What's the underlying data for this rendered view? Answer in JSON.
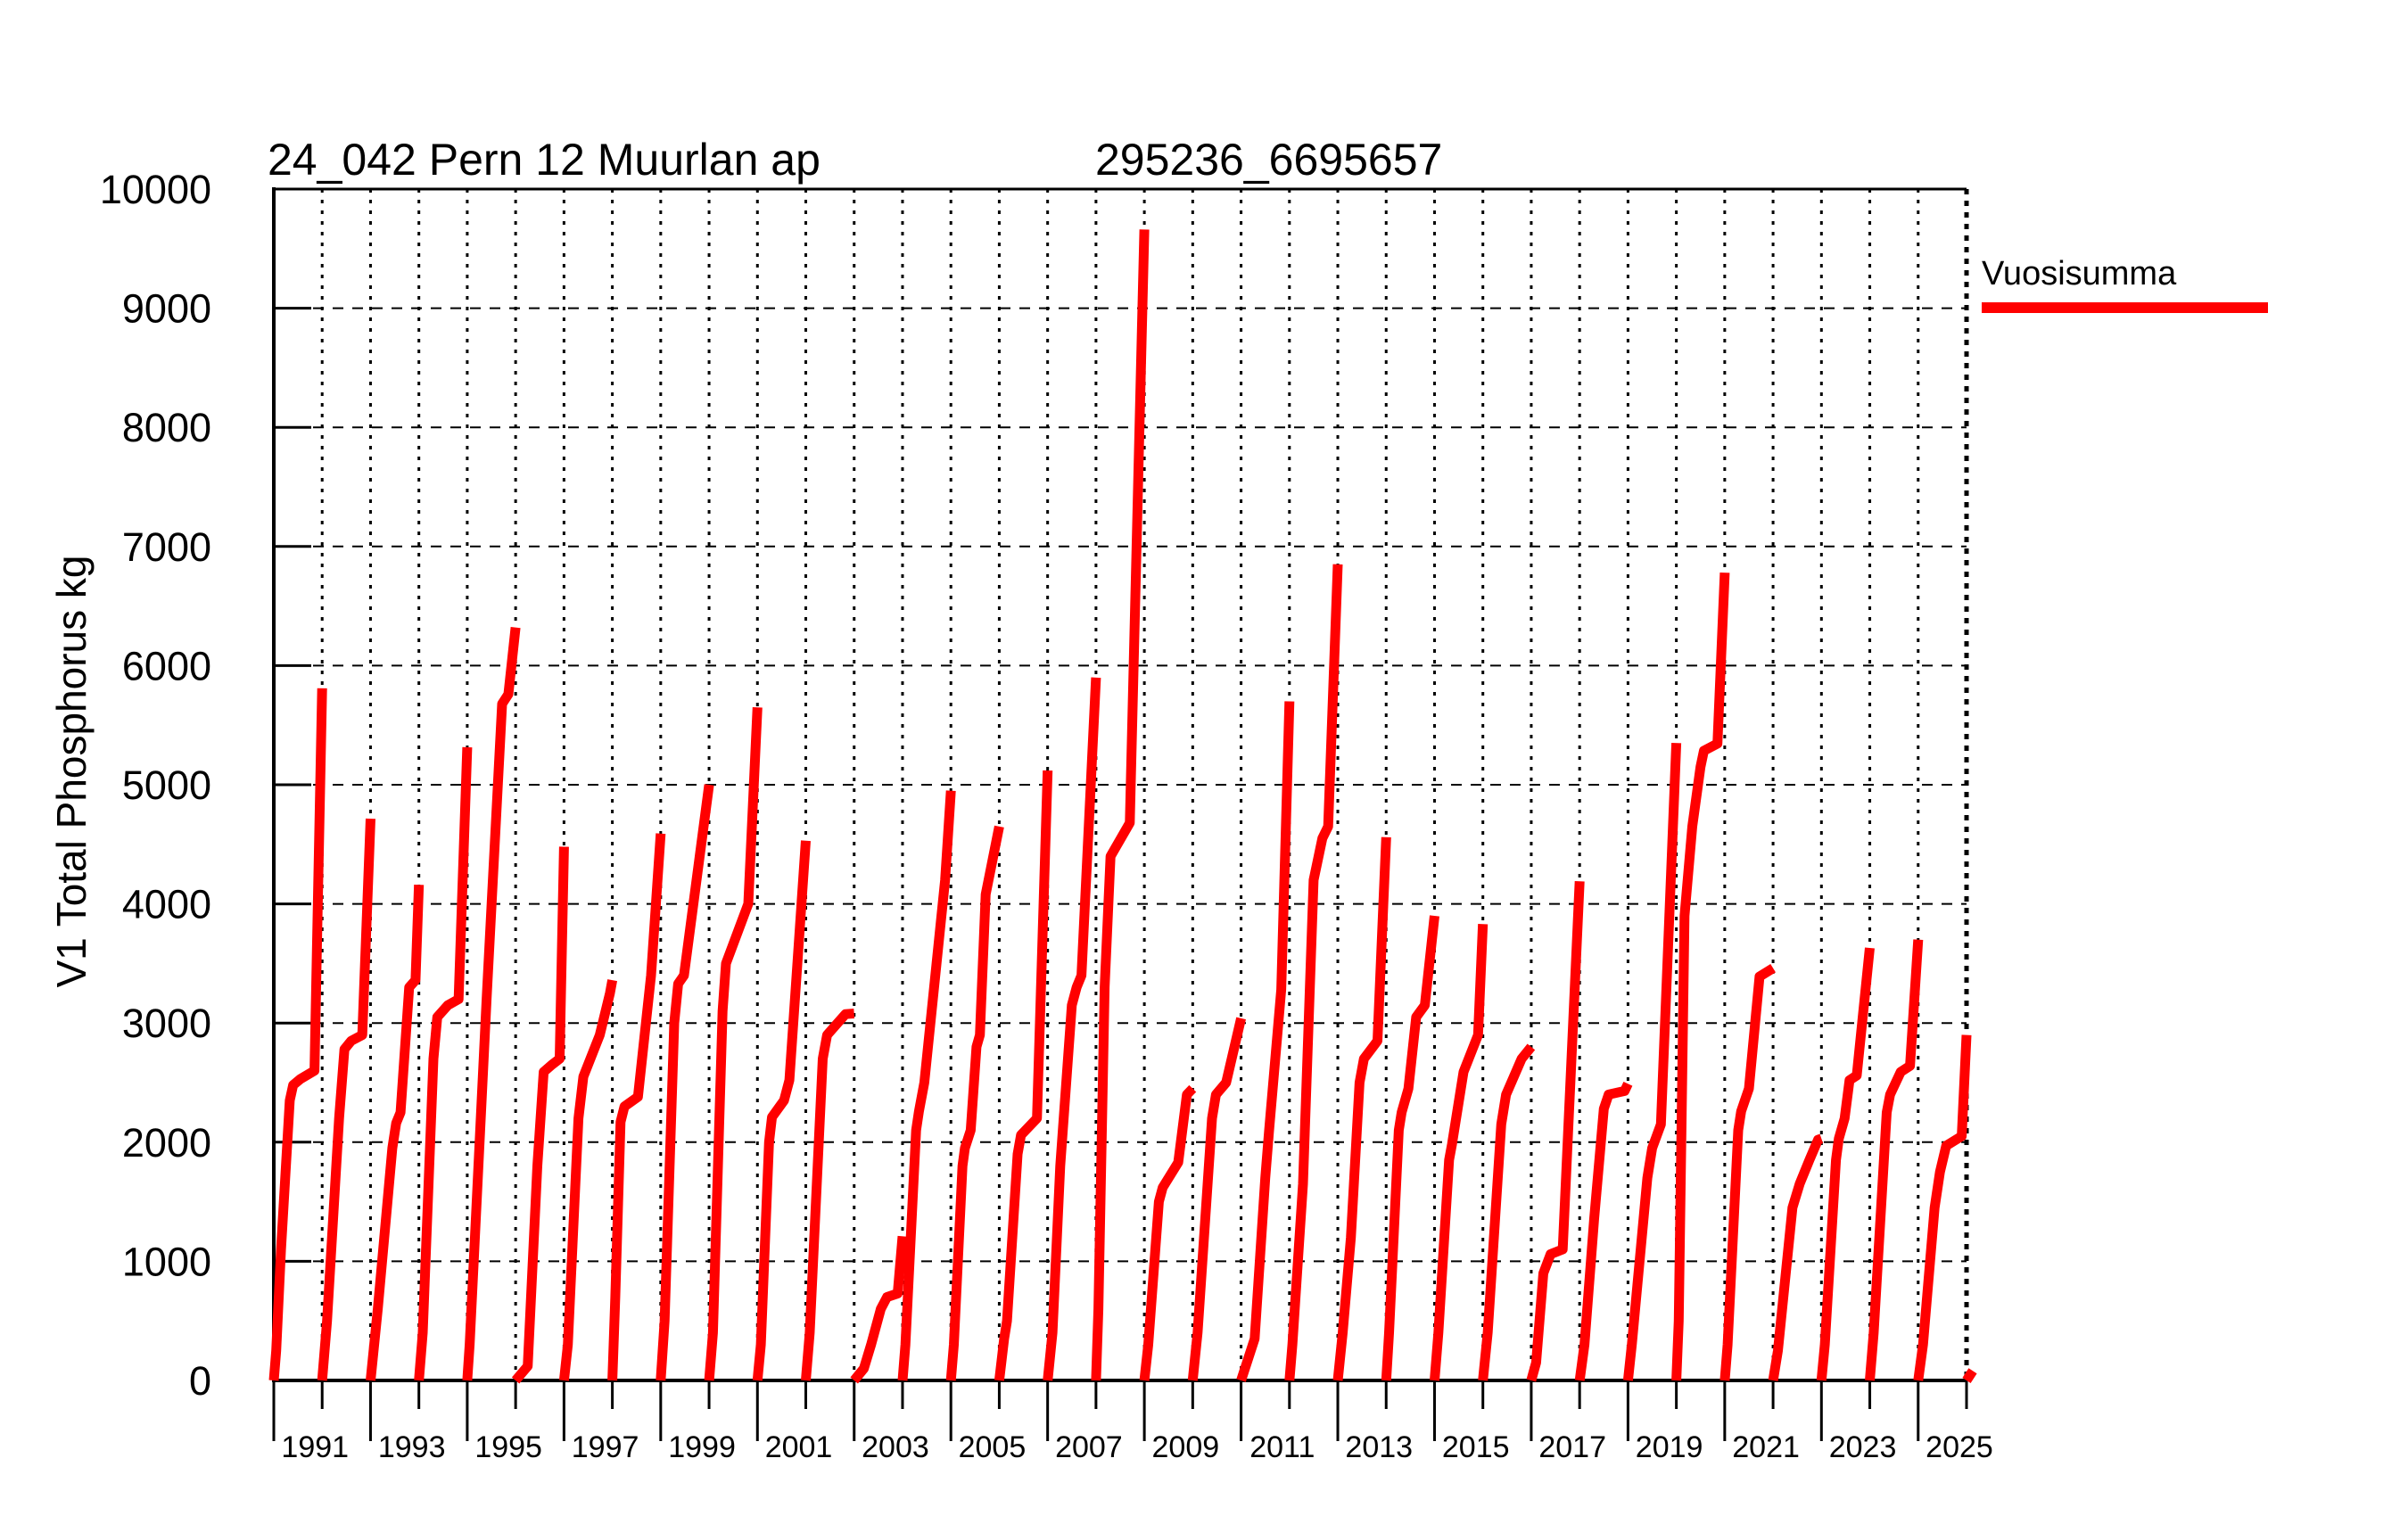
{
  "title": {
    "station": "24_042 Pern 12 Muurlan ap",
    "coordinates": "295236_6695657"
  },
  "y_axis": {
    "label": "V1 Total Phosphorus kg",
    "min": 0,
    "max": 10000,
    "tick_step": 1000,
    "tick_values": [
      0,
      1000,
      2000,
      3000,
      4000,
      5000,
      6000,
      7000,
      8000,
      9000,
      10000
    ]
  },
  "x_axis": {
    "start_year": 1990,
    "end_year": 2025,
    "labeled_years": [
      1991,
      1993,
      1995,
      1997,
      1999,
      2001,
      2003,
      2005,
      2007,
      2009,
      2011,
      2013,
      2015,
      2017,
      2019,
      2021,
      2023,
      2025
    ]
  },
  "legend": {
    "label": "Vuosisumma",
    "color": "#ff0000"
  },
  "colors": {
    "series": "#ff0000",
    "axis": "#000000",
    "background": "#ffffff"
  },
  "chart_data": {
    "type": "line",
    "title": "24_042 Pern 12 Muurlan ap 295236_6695657",
    "xlabel": "",
    "ylabel": "V1 Total Phosphorus kg",
    "ylim": [
      0,
      10000
    ],
    "xlim": [
      1990,
      2025
    ],
    "grid": true,
    "legend_position": "outside-top-right",
    "series_name": "Vuosisumma",
    "unit": "kg",
    "description": "Cumulative annual total phosphorus load; each year's curve rises from 0 on Jan 1 to the annual total on Dec 31. profile points are [fraction_of_year, cumulative_kg].",
    "years": [
      {
        "year": 1990,
        "total": 5810,
        "profile": [
          [
            0,
            0
          ],
          [
            0.05,
            250
          ],
          [
            0.15,
            1100
          ],
          [
            0.33,
            2350
          ],
          [
            0.4,
            2480
          ],
          [
            0.55,
            2530
          ],
          [
            0.84,
            2600
          ],
          [
            1,
            5810
          ]
        ]
      },
      {
        "year": 1991,
        "total": 4715,
        "profile": [
          [
            0,
            0
          ],
          [
            0.1,
            500
          ],
          [
            0.35,
            2200
          ],
          [
            0.46,
            2780
          ],
          [
            0.6,
            2850
          ],
          [
            0.83,
            2900
          ],
          [
            1,
            4715
          ]
        ]
      },
      {
        "year": 1992,
        "total": 4160,
        "profile": [
          [
            0,
            0
          ],
          [
            0.15,
            600
          ],
          [
            0.45,
            1950
          ],
          [
            0.53,
            2160
          ],
          [
            0.62,
            2250
          ],
          [
            0.8,
            3300
          ],
          [
            0.93,
            3360
          ],
          [
            1,
            4160
          ]
        ]
      },
      {
        "year": 1993,
        "total": 5315,
        "profile": [
          [
            0,
            0
          ],
          [
            0.08,
            400
          ],
          [
            0.3,
            2700
          ],
          [
            0.38,
            3050
          ],
          [
            0.6,
            3150
          ],
          [
            0.82,
            3200
          ],
          [
            1,
            5315
          ]
        ]
      },
      {
        "year": 1994,
        "total": 6320,
        "profile": [
          [
            0,
            0
          ],
          [
            0.05,
            300
          ],
          [
            0.4,
            3200
          ],
          [
            0.72,
            5680
          ],
          [
            0.85,
            5760
          ],
          [
            1,
            6320
          ]
        ]
      },
      {
        "year": 1995,
        "total": 4480,
        "profile": [
          [
            0,
            0
          ],
          [
            0.25,
            120
          ],
          [
            0.45,
            1800
          ],
          [
            0.58,
            2590
          ],
          [
            0.75,
            2650
          ],
          [
            0.91,
            2700
          ],
          [
            1,
            4480
          ]
        ]
      },
      {
        "year": 1996,
        "total": 3360,
        "profile": [
          [
            0,
            0
          ],
          [
            0.08,
            300
          ],
          [
            0.3,
            2200
          ],
          [
            0.4,
            2550
          ],
          [
            0.74,
            2900
          ],
          [
            0.95,
            3250
          ],
          [
            1,
            3360
          ]
        ]
      },
      {
        "year": 1997,
        "total": 4590,
        "profile": [
          [
            0,
            0
          ],
          [
            0.06,
            700
          ],
          [
            0.17,
            2170
          ],
          [
            0.25,
            2300
          ],
          [
            0.53,
            2380
          ],
          [
            0.8,
            3400
          ],
          [
            1,
            4590
          ]
        ]
      },
      {
        "year": 1998,
        "total": 5000,
        "profile": [
          [
            0,
            0
          ],
          [
            0.08,
            500
          ],
          [
            0.28,
            3000
          ],
          [
            0.36,
            3330
          ],
          [
            0.48,
            3400
          ],
          [
            1,
            5000
          ]
        ]
      },
      {
        "year": 1999,
        "total": 5650,
        "profile": [
          [
            0,
            0
          ],
          [
            0.08,
            400
          ],
          [
            0.28,
            3100
          ],
          [
            0.35,
            3500
          ],
          [
            0.81,
            4000
          ],
          [
            1,
            5650
          ]
        ]
      },
      {
        "year": 2000,
        "total": 4530,
        "profile": [
          [
            0,
            0
          ],
          [
            0.07,
            300
          ],
          [
            0.24,
            2000
          ],
          [
            0.3,
            2210
          ],
          [
            0.55,
            2350
          ],
          [
            0.66,
            2520
          ],
          [
            1,
            4530
          ]
        ]
      },
      {
        "year": 2001,
        "total": 3080,
        "profile": [
          [
            0,
            0
          ],
          [
            0.08,
            400
          ],
          [
            0.35,
            2700
          ],
          [
            0.44,
            2900
          ],
          [
            0.82,
            3075
          ],
          [
            1,
            3080
          ]
        ]
      },
      {
        "year": 2002,
        "total": 1210,
        "profile": [
          [
            0,
            0
          ],
          [
            0.2,
            100
          ],
          [
            0.35,
            300
          ],
          [
            0.55,
            600
          ],
          [
            0.68,
            700
          ],
          [
            0.9,
            730
          ],
          [
            1,
            1210
          ]
        ]
      },
      {
        "year": 2003,
        "total": 4950,
        "profile": [
          [
            0,
            0
          ],
          [
            0.06,
            300
          ],
          [
            0.28,
            2100
          ],
          [
            0.34,
            2260
          ],
          [
            0.45,
            2500
          ],
          [
            0.88,
            4200
          ],
          [
            1,
            4950
          ]
        ]
      },
      {
        "year": 2004,
        "total": 4650,
        "profile": [
          [
            0,
            0
          ],
          [
            0.06,
            300
          ],
          [
            0.24,
            1800
          ],
          [
            0.29,
            1950
          ],
          [
            0.41,
            2100
          ],
          [
            0.53,
            2800
          ],
          [
            0.6,
            2900
          ],
          [
            0.72,
            4080
          ],
          [
            1,
            4650
          ]
        ]
      },
      {
        "year": 2005,
        "total": 5120,
        "profile": [
          [
            0,
            0
          ],
          [
            0.1,
            350
          ],
          [
            0.16,
            500
          ],
          [
            0.38,
            1900
          ],
          [
            0.45,
            2060
          ],
          [
            0.78,
            2200
          ],
          [
            1,
            5120
          ]
        ]
      },
      {
        "year": 2006,
        "total": 5900,
        "profile": [
          [
            0,
            0
          ],
          [
            0.1,
            400
          ],
          [
            0.26,
            1800
          ],
          [
            0.5,
            3150
          ],
          [
            0.6,
            3300
          ],
          [
            0.7,
            3400
          ],
          [
            1,
            5900
          ]
        ]
      },
      {
        "year": 2007,
        "total": 9660,
        "profile": [
          [
            0,
            0
          ],
          [
            0.05,
            600
          ],
          [
            0.18,
            3300
          ],
          [
            0.3,
            4400
          ],
          [
            0.7,
            4680
          ],
          [
            1,
            9660
          ]
        ]
      },
      {
        "year": 2008,
        "total": 2450,
        "profile": [
          [
            0,
            0
          ],
          [
            0.08,
            300
          ],
          [
            0.3,
            1500
          ],
          [
            0.38,
            1620
          ],
          [
            0.7,
            1830
          ],
          [
            0.88,
            2400
          ],
          [
            1,
            2450
          ]
        ]
      },
      {
        "year": 2009,
        "total": 3040,
        "profile": [
          [
            0,
            0
          ],
          [
            0.1,
            400
          ],
          [
            0.4,
            2200
          ],
          [
            0.48,
            2400
          ],
          [
            0.69,
            2500
          ],
          [
            1,
            3040
          ]
        ]
      },
      {
        "year": 2010,
        "total": 5700,
        "profile": [
          [
            0,
            0
          ],
          [
            0.28,
            350
          ],
          [
            0.5,
            1700
          ],
          [
            0.58,
            2100
          ],
          [
            0.83,
            3280
          ],
          [
            1,
            5700
          ]
        ]
      },
      {
        "year": 2011,
        "total": 6850,
        "profile": [
          [
            0,
            0
          ],
          [
            0.06,
            300
          ],
          [
            0.28,
            1650
          ],
          [
            0.5,
            4200
          ],
          [
            0.68,
            4550
          ],
          [
            0.8,
            4650
          ],
          [
            1,
            6850
          ]
        ]
      },
      {
        "year": 2012,
        "total": 4560,
        "profile": [
          [
            0,
            0
          ],
          [
            0.1,
            400
          ],
          [
            0.27,
            1200
          ],
          [
            0.45,
            2500
          ],
          [
            0.54,
            2700
          ],
          [
            0.82,
            2850
          ],
          [
            1,
            4560
          ]
        ]
      },
      {
        "year": 2013,
        "total": 3900,
        "profile": [
          [
            0,
            0
          ],
          [
            0.06,
            400
          ],
          [
            0.26,
            2100
          ],
          [
            0.32,
            2250
          ],
          [
            0.46,
            2450
          ],
          [
            0.62,
            3050
          ],
          [
            0.8,
            3150
          ],
          [
            1,
            3900
          ]
        ]
      },
      {
        "year": 2014,
        "total": 3830,
        "profile": [
          [
            0,
            0
          ],
          [
            0.08,
            400
          ],
          [
            0.3,
            1850
          ],
          [
            0.36,
            1980
          ],
          [
            0.6,
            2590
          ],
          [
            0.9,
            2900
          ],
          [
            1,
            3830
          ]
        ]
      },
      {
        "year": 2015,
        "total": 2800,
        "profile": [
          [
            0,
            0
          ],
          [
            0.1,
            400
          ],
          [
            0.38,
            2150
          ],
          [
            0.48,
            2400
          ],
          [
            0.8,
            2700
          ],
          [
            1,
            2800
          ]
        ]
      },
      {
        "year": 2016,
        "total": 4190,
        "profile": [
          [
            0,
            0
          ],
          [
            0.1,
            150
          ],
          [
            0.25,
            900
          ],
          [
            0.4,
            1060
          ],
          [
            0.65,
            1100
          ],
          [
            1,
            4190
          ]
        ]
      },
      {
        "year": 2017,
        "total": 2490,
        "profile": [
          [
            0,
            0
          ],
          [
            0.1,
            300
          ],
          [
            0.3,
            1350
          ],
          [
            0.5,
            2280
          ],
          [
            0.6,
            2400
          ],
          [
            0.93,
            2430
          ],
          [
            1,
            2490
          ]
        ]
      },
      {
        "year": 2018,
        "total": 5350,
        "profile": [
          [
            0,
            0
          ],
          [
            0.08,
            300
          ],
          [
            0.4,
            1700
          ],
          [
            0.5,
            1950
          ],
          [
            0.68,
            2150
          ],
          [
            1,
            5350
          ]
        ]
      },
      {
        "year": 2019,
        "total": 6780,
        "profile": [
          [
            0,
            0
          ],
          [
            0.05,
            500
          ],
          [
            0.17,
            3900
          ],
          [
            0.33,
            4650
          ],
          [
            0.5,
            5150
          ],
          [
            0.57,
            5285
          ],
          [
            0.85,
            5345
          ],
          [
            1,
            6780
          ]
        ]
      },
      {
        "year": 2020,
        "total": 3460,
        "profile": [
          [
            0,
            0
          ],
          [
            0.06,
            300
          ],
          [
            0.28,
            2100
          ],
          [
            0.34,
            2260
          ],
          [
            0.5,
            2450
          ],
          [
            0.72,
            3390
          ],
          [
            1,
            3460
          ]
        ]
      },
      {
        "year": 2021,
        "total": 2030,
        "profile": [
          [
            0,
            0
          ],
          [
            0.1,
            250
          ],
          [
            0.4,
            1450
          ],
          [
            0.55,
            1650
          ],
          [
            0.75,
            1850
          ],
          [
            0.93,
            2020
          ],
          [
            1,
            2030
          ]
        ]
      },
      {
        "year": 2022,
        "total": 3630,
        "profile": [
          [
            0,
            0
          ],
          [
            0.07,
            300
          ],
          [
            0.3,
            1850
          ],
          [
            0.36,
            2030
          ],
          [
            0.48,
            2200
          ],
          [
            0.58,
            2520
          ],
          [
            0.73,
            2560
          ],
          [
            1,
            3630
          ]
        ]
      },
      {
        "year": 2023,
        "total": 3700,
        "profile": [
          [
            0,
            0
          ],
          [
            0.08,
            400
          ],
          [
            0.35,
            2250
          ],
          [
            0.42,
            2400
          ],
          [
            0.64,
            2590
          ],
          [
            0.83,
            2640
          ],
          [
            1,
            3700
          ]
        ]
      },
      {
        "year": 2024,
        "total": 2900,
        "profile": [
          [
            0,
            0
          ],
          [
            0.1,
            300
          ],
          [
            0.34,
            1450
          ],
          [
            0.45,
            1750
          ],
          [
            0.58,
            1970
          ],
          [
            0.9,
            2050
          ],
          [
            1,
            2900
          ]
        ]
      },
      {
        "year": 2025,
        "total": 80,
        "partial": true,
        "profile": [
          [
            0,
            0
          ],
          [
            0.13,
            80
          ]
        ]
      }
    ]
  }
}
